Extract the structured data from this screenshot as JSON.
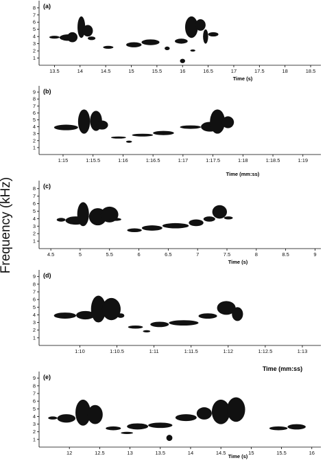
{
  "figure": {
    "ylabel": "Frequency (kHz)"
  },
  "chart_data": [
    {
      "type": "spectrogram",
      "panel_label": "(a)",
      "xlabel": "Time (s)",
      "x_ticks": [
        "13.5",
        "14",
        "14.5",
        "15",
        "15.5",
        "16",
        "16.5",
        "17",
        "17.5",
        "18",
        "18.5"
      ],
      "x_tick_values": [
        13.5,
        14,
        14.5,
        15,
        15.5,
        16,
        16.5,
        17,
        17.5,
        18,
        18.5
      ],
      "xlim": [
        13.2,
        18.7
      ],
      "y_ticks": [
        "1",
        "2",
        "3",
        "4",
        "5",
        "6",
        "7",
        "8"
      ],
      "ylim": [
        0,
        8.7
      ],
      "syllables": [
        [
          13.4,
          13.6,
          3.7,
          4.1
        ],
        [
          13.6,
          13.95,
          3.4,
          4.3
        ],
        [
          13.75,
          13.95,
          3.2,
          4.6
        ],
        [
          13.95,
          14.1,
          3.8,
          6.8
        ],
        [
          14.05,
          14.25,
          4.0,
          5.6
        ],
        [
          14.15,
          14.3,
          3.5,
          4.0
        ],
        [
          14.45,
          14.65,
          2.3,
          2.7
        ],
        [
          14.9,
          15.2,
          2.5,
          3.2
        ],
        [
          15.2,
          15.55,
          2.8,
          3.6
        ],
        [
          15.65,
          15.75,
          2.1,
          2.6
        ],
        [
          15.85,
          16.1,
          3.0,
          3.7
        ],
        [
          16.05,
          16.3,
          3.8,
          6.8
        ],
        [
          16.25,
          16.45,
          4.8,
          6.4
        ],
        [
          16.4,
          16.5,
          3.0,
          5.0
        ],
        [
          16.5,
          16.7,
          4.0,
          4.6
        ],
        [
          16.15,
          16.25,
          1.9,
          2.2
        ],
        [
          15.95,
          16.05,
          0.3,
          0.9
        ]
      ]
    },
    {
      "type": "spectrogram",
      "panel_label": "(b)",
      "xlabel": "Time (mm:ss)",
      "x_ticks": [
        "1:15",
        "1:15.5",
        "1:16",
        "1:16.5",
        "1:17",
        "1:17.5",
        "1:18",
        "1:18.5",
        "1:19"
      ],
      "x_tick_values": [
        75,
        75.5,
        76,
        76.5,
        77,
        77.5,
        78,
        78.5,
        79
      ],
      "xlim": [
        74.6,
        79.3
      ],
      "y_ticks": [
        "1",
        "2",
        "3",
        "4",
        "5",
        "6",
        "7",
        "8",
        "9"
      ],
      "ylim": [
        0,
        9.6
      ],
      "syllables": [
        [
          74.85,
          75.25,
          3.5,
          4.3
        ],
        [
          75.25,
          75.45,
          3.0,
          6.5
        ],
        [
          75.45,
          75.65,
          3.4,
          6.3
        ],
        [
          75.55,
          75.75,
          3.6,
          4.9
        ],
        [
          75.8,
          76.05,
          2.3,
          2.6
        ],
        [
          76.05,
          76.15,
          1.7,
          2.0
        ],
        [
          76.15,
          76.5,
          2.6,
          3.0
        ],
        [
          76.5,
          76.85,
          2.8,
          3.4
        ],
        [
          76.95,
          77.3,
          3.7,
          4.2
        ],
        [
          77.3,
          77.6,
          3.3,
          4.7
        ],
        [
          77.45,
          77.7,
          3.0,
          6.5
        ],
        [
          77.65,
          77.85,
          3.8,
          5.5
        ]
      ]
    },
    {
      "type": "spectrogram",
      "panel_label": "(c)",
      "xlabel": "Time (s)",
      "x_ticks": [
        "4.5",
        "5",
        "5.5",
        "6",
        "6.5",
        "7",
        "7.5",
        "8",
        "8.5",
        "9"
      ],
      "x_tick_values": [
        4.5,
        5,
        5.5,
        6,
        6.5,
        7,
        7.5,
        8,
        8.5,
        9
      ],
      "xlim": [
        4.3,
        9.1
      ],
      "y_ticks": [
        "1",
        "2",
        "3",
        "4",
        "5",
        "6",
        "7",
        "8"
      ],
      "ylim": [
        0,
        8.8
      ],
      "syllables": [
        [
          4.6,
          4.75,
          3.6,
          4.1
        ],
        [
          4.75,
          5.1,
          3.2,
          4.3
        ],
        [
          4.95,
          5.15,
          3.0,
          6.2
        ],
        [
          5.15,
          5.45,
          3.1,
          5.4
        ],
        [
          5.35,
          5.65,
          3.5,
          5.6
        ],
        [
          5.5,
          5.7,
          3.7,
          4.1
        ],
        [
          5.8,
          6.05,
          2.2,
          2.7
        ],
        [
          6.05,
          6.4,
          2.4,
          3.1
        ],
        [
          6.4,
          6.85,
          2.7,
          3.4
        ],
        [
          6.85,
          7.1,
          3.0,
          3.9
        ],
        [
          7.1,
          7.3,
          3.6,
          4.3
        ],
        [
          7.25,
          7.5,
          4.0,
          5.8
        ],
        [
          7.45,
          7.6,
          3.9,
          4.3
        ]
      ]
    },
    {
      "type": "spectrogram",
      "panel_label": "(d)",
      "xlabel": "Time (mm:ss)",
      "x_ticks": [
        "1:10",
        "1:10.5",
        "1:11",
        "1:11.5",
        "1:12",
        "1:12.5",
        "1:13"
      ],
      "x_tick_values": [
        70,
        70.5,
        71,
        71.5,
        72,
        72.5,
        73
      ],
      "xlim": [
        69.45,
        73.25
      ],
      "y_ticks": [
        "1",
        "2",
        "3",
        "4",
        "5",
        "6",
        "7",
        "8",
        "9"
      ],
      "ylim": [
        0,
        9.6
      ],
      "syllables": [
        [
          69.65,
          69.95,
          3.5,
          4.3
        ],
        [
          69.95,
          70.2,
          3.4,
          4.5
        ],
        [
          70.15,
          70.35,
          3.0,
          6.5
        ],
        [
          70.3,
          70.55,
          3.3,
          6.2
        ],
        [
          70.5,
          70.6,
          3.6,
          4.2
        ],
        [
          70.65,
          70.85,
          2.2,
          2.6
        ],
        [
          70.85,
          70.95,
          1.7,
          2.0
        ],
        [
          70.95,
          71.2,
          2.4,
          3.1
        ],
        [
          71.2,
          71.6,
          2.6,
          3.3
        ],
        [
          71.6,
          71.85,
          3.5,
          4.2
        ],
        [
          71.85,
          72.1,
          4.0,
          5.8
        ],
        [
          72.05,
          72.2,
          3.2,
          5.0
        ]
      ]
    },
    {
      "type": "spectrogram",
      "panel_label": "(e)",
      "xlabel": "Time (s)",
      "x_ticks": [
        "12",
        "12.5",
        "13",
        "13.5",
        "14",
        "14.5",
        "15",
        "15.5",
        "16"
      ],
      "x_tick_values": [
        12,
        12.5,
        13,
        13.5,
        14,
        14.5,
        15,
        15.5,
        16
      ],
      "xlim": [
        11.5,
        16.15
      ],
      "y_ticks": [
        "1",
        "2",
        "3",
        "4",
        "5",
        "6",
        "7",
        "8",
        "9"
      ],
      "ylim": [
        0,
        9.6
      ],
      "syllables": [
        [
          11.65,
          11.8,
          3.6,
          4.0
        ],
        [
          11.8,
          12.1,
          3.2,
          4.3
        ],
        [
          12.1,
          12.35,
          2.8,
          6.2
        ],
        [
          12.3,
          12.55,
          3.0,
          5.5
        ],
        [
          12.6,
          12.85,
          2.2,
          2.7
        ],
        [
          12.85,
          13.05,
          1.7,
          2.0
        ],
        [
          12.95,
          13.3,
          2.3,
          3.1
        ],
        [
          13.3,
          13.7,
          2.5,
          3.2
        ],
        [
          13.6,
          13.7,
          0.8,
          1.6
        ],
        [
          13.75,
          14.1,
          3.4,
          4.3
        ],
        [
          14.1,
          14.35,
          3.6,
          5.2
        ],
        [
          14.35,
          14.65,
          3.0,
          6.2
        ],
        [
          14.6,
          14.9,
          3.3,
          6.5
        ],
        [
          15.3,
          15.6,
          2.2,
          2.7
        ],
        [
          15.6,
          15.9,
          2.3,
          3.0
        ]
      ]
    }
  ]
}
